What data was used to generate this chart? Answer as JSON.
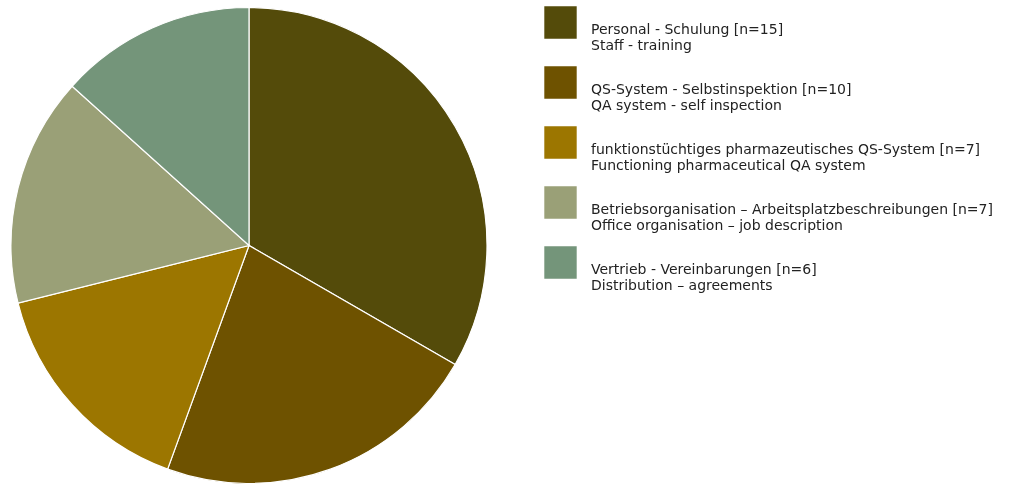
{
  "chart_data": {
    "type": "pie",
    "categories": [
      "Personal - Schulung [n=15]\nStaff - training",
      "QS-System - Selbstinspektion [n=10]\nQA system - self inspection",
      "funktionstüchtiges pharmazeutisches QS-System [n=7]\nFunctioning pharmaceutical QA system",
      "Betriebsorganisation – Arbeitsplatzbeschreibungen [n=7]\nOffice organisation – job description",
      "Vertrieb - Vereinbarungen [n=6]\nDistribution – agreements"
    ],
    "values": [
      15,
      10,
      7,
      7,
      6
    ],
    "colors": [
      "#544b0a",
      "#6e5200",
      "#9c7600",
      "#9aa077",
      "#74957a"
    ],
    "legend": "top right"
  }
}
